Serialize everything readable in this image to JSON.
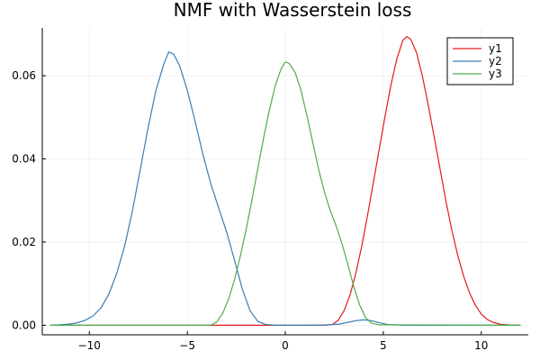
{
  "chart_data": {
    "type": "line",
    "title": "NMF with Wasserstein loss",
    "xlabel": "",
    "ylabel": "",
    "xlim": [
      -12.4,
      12.4
    ],
    "ylim": [
      -0.0023,
      0.0715
    ],
    "grid": true,
    "legend_position": "top-right",
    "xticks": [
      -10,
      -5,
      0,
      5,
      10
    ],
    "xtick_labels": [
      "−10",
      "−5",
      "0",
      "5",
      "10"
    ],
    "yticks": [
      0.0,
      0.02,
      0.04,
      0.06
    ],
    "ytick_labels": [
      "0.00",
      "0.02",
      "0.04",
      "0.06"
    ],
    "series": [
      {
        "name": "y1",
        "color": "#e41a1c",
        "x": [
          -12,
          2.0,
          2.4,
          2.7,
          3.0,
          3.3,
          3.6,
          3.9,
          4.2,
          4.5,
          4.8,
          5.1,
          5.4,
          5.7,
          6.0,
          6.2,
          6.4,
          6.7,
          7.0,
          7.3,
          7.6,
          7.9,
          8.2,
          8.5,
          8.8,
          9.1,
          9.4,
          9.7,
          10.0,
          10.3,
          10.6,
          11.0,
          11.5,
          12
        ],
        "y": [
          0.0,
          0.0,
          0.0002,
          0.0012,
          0.0035,
          0.0072,
          0.0125,
          0.019,
          0.0265,
          0.0345,
          0.0425,
          0.0505,
          0.058,
          0.0642,
          0.0685,
          0.0694,
          0.0688,
          0.0655,
          0.0598,
          0.0528,
          0.0452,
          0.0375,
          0.0298,
          0.0228,
          0.0168,
          0.0118,
          0.0078,
          0.0048,
          0.0027,
          0.0014,
          0.0007,
          0.0002,
          5e-05,
          0.0
        ]
      },
      {
        "name": "y2",
        "color": "#377eb8",
        "x": [
          -12,
          -11.5,
          -11.0,
          -10.6,
          -10.2,
          -9.8,
          -9.4,
          -9.0,
          -8.6,
          -8.2,
          -7.8,
          -7.4,
          -7.0,
          -6.6,
          -6.2,
          -5.95,
          -5.7,
          -5.4,
          -5.0,
          -4.6,
          -4.2,
          -3.8,
          -3.4,
          -3.0,
          -2.6,
          -2.2,
          -1.8,
          -1.4,
          -1.0,
          -0.5,
          0.0,
          1.0,
          2.0,
          2.8,
          3.2,
          3.6,
          4.0,
          4.4,
          4.8,
          5.2,
          5.6,
          6.0,
          12
        ],
        "y": [
          0.0,
          0.0001,
          0.0003,
          0.0006,
          0.0012,
          0.0023,
          0.0042,
          0.0075,
          0.0125,
          0.019,
          0.0275,
          0.0375,
          0.0475,
          0.0565,
          0.0628,
          0.0657,
          0.0652,
          0.0625,
          0.0565,
          0.049,
          0.041,
          0.034,
          0.0282,
          0.0225,
          0.0158,
          0.0088,
          0.0035,
          0.0009,
          0.0002,
          0.0,
          0.0,
          0.0,
          5e-05,
          0.0003,
          0.0007,
          0.0011,
          0.0013,
          0.0011,
          0.0006,
          0.0002,
          0.0001,
          0.0,
          0.0
        ]
      },
      {
        "name": "y3",
        "color": "#4daf4a",
        "x": [
          -12,
          -3.8,
          -3.5,
          -3.2,
          -2.9,
          -2.6,
          -2.3,
          -2.0,
          -1.7,
          -1.4,
          -1.1,
          -0.8,
          -0.5,
          -0.2,
          0.0,
          0.2,
          0.5,
          0.8,
          1.1,
          1.4,
          1.7,
          2.0,
          2.3,
          2.6,
          2.9,
          3.2,
          3.5,
          3.8,
          4.1,
          4.4,
          4.8,
          12
        ],
        "y": [
          0.0,
          0.0,
          0.0008,
          0.0028,
          0.0062,
          0.0108,
          0.0165,
          0.023,
          0.0302,
          0.0378,
          0.0452,
          0.052,
          0.0578,
          0.0618,
          0.0633,
          0.063,
          0.0608,
          0.0565,
          0.0505,
          0.044,
          0.0375,
          0.032,
          0.0275,
          0.0238,
          0.0195,
          0.0145,
          0.0092,
          0.0048,
          0.0018,
          0.0005,
          0.0001,
          0.0
        ]
      }
    ]
  }
}
